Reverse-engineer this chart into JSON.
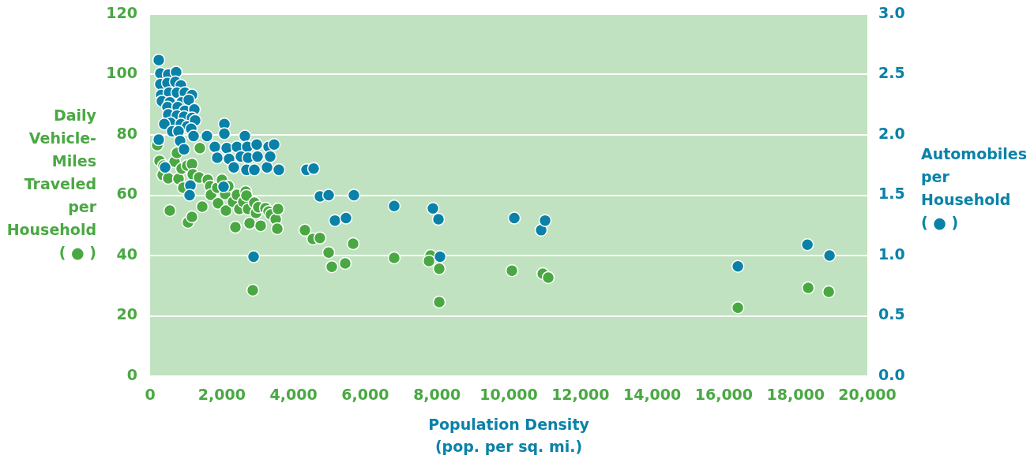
{
  "chart_data": {
    "type": "scatter",
    "xlabel": "Population Density (pop. per sq. mi.)",
    "ylabel": "Daily Vehicle-Miles Traveled per Household ( ● )",
    "y2label": "Automobiles per Household ( ● )",
    "xlim": [
      0,
      20000
    ],
    "xticks": [
      0,
      {
        "value": 2000,
        "label": "2,000"
      },
      {
        "value": 4000,
        "label": "4,000"
      },
      {
        "value": 6000,
        "label": "6,000"
      },
      {
        "value": 8000,
        "label": "8,000"
      },
      {
        "value": 10000,
        "label": "10,000"
      },
      {
        "value": 12000,
        "label": "12,000"
      },
      {
        "value": 14000,
        "label": "14,000"
      },
      {
        "value": 16000,
        "label": "16,000"
      },
      {
        "value": 18000,
        "label": "18,000"
      },
      {
        "value": 20000,
        "label": "20,000"
      }
    ],
    "ylim": [
      0,
      120
    ],
    "yticks": [
      0,
      20,
      40,
      60,
      80,
      100,
      120
    ],
    "y2lim": [
      0,
      3
    ],
    "y2ticks": [
      {
        "value": 0,
        "label": "0.0"
      },
      {
        "value": 0.5,
        "label": "0.5"
      },
      {
        "value": 1,
        "label": "1.0"
      },
      {
        "value": 1.5,
        "label": "1.5"
      },
      {
        "value": 2,
        "label": "2.0"
      },
      {
        "value": 2.5,
        "label": "2.5"
      },
      {
        "value": 3,
        "label": "3.0"
      }
    ],
    "grid": "y",
    "legend": false,
    "marker": "circle",
    "series": [
      {
        "color": "#4aa843",
        "x": [
          200,
          264,
          374,
          352,
          507,
          551,
          683,
          749,
          793,
          881,
          925,
          1035,
          1168,
          1190,
          1057,
          1168,
          1366,
          1388,
          1454,
          1608,
          1674,
          1696,
          1873,
          1895,
          2005,
          2093,
          2115,
          2181,
          2313,
          2379,
          2423,
          2489,
          2600,
          2666,
          2732,
          2776,
          2688,
          2864,
          2908,
          2952,
          3018,
          3084,
          3216,
          3305,
          3370,
          3503,
          3547,
          3569,
          4318,
          4538,
          4736,
          4979,
          5067,
          5441,
          5662,
          6807,
          7821,
          7777,
          8063,
          8063,
          10090,
          10950,
          11103,
          16390,
          18351,
          18924
        ],
        "values": [
          76.6,
          71.4,
          69.8,
          66.7,
          65.6,
          54.9,
          71.1,
          74.0,
          65.4,
          68.8,
          62.5,
          69.8,
          70.3,
          66.9,
          51.0,
          52.8,
          65.9,
          75.6,
          56.2,
          65.1,
          63.0,
          60.1,
          62.5,
          57.3,
          65.1,
          60.4,
          54.9,
          63.0,
          57.8,
          49.4,
          60.1,
          55.4,
          57.8,
          61.2,
          55.4,
          50.7,
          59.9,
          28.5,
          57.5,
          54.1,
          56.0,
          49.9,
          55.7,
          54.6,
          53.6,
          52.0,
          48.9,
          55.4,
          48.4,
          45.5,
          45.8,
          41.0,
          36.3,
          37.4,
          43.9,
          39.2,
          40.0,
          38.2,
          35.6,
          24.6,
          35.0,
          34.0,
          32.7,
          22.7,
          29.3,
          28.0
        ]
      },
      {
        "color": "#0a82a8",
        "axis": "y2",
        "x": [
          242,
          286,
          507,
          727,
          286,
          485,
          705,
          859,
          308,
          529,
          749,
          969,
          1168,
          330,
          551,
          881,
          1079,
          485,
          771,
          969,
          1234,
          507,
          749,
          947,
          1168,
          573,
          859,
          1035,
          1256,
          397,
          617,
          793,
          1146,
          1212,
          1586,
          2071,
          2071,
          2644,
          242,
          837,
          1806,
          2137,
          2423,
          2710,
          2974,
          3305,
          3459,
          947,
          1873,
          2203,
          2533,
          2732,
          2996,
          3261,
          3349,
          2688,
          2908,
          3591,
          2335,
          419,
          2049,
          1124,
          1102,
          2886,
          4362,
          4560,
          4736,
          4979,
          5155,
          5463,
          5684,
          6807,
          7887,
          8041,
          8085,
          10156,
          10905,
          11015,
          16390,
          18329,
          18946
        ],
        "values": [
          2.62,
          2.51,
          2.5,
          2.52,
          2.42,
          2.43,
          2.44,
          2.41,
          2.33,
          2.35,
          2.35,
          2.35,
          2.33,
          2.28,
          2.27,
          2.27,
          2.29,
          2.23,
          2.23,
          2.2,
          2.21,
          2.17,
          2.16,
          2.15,
          2.14,
          2.1,
          2.09,
          2.07,
          2.12,
          2.09,
          2.03,
          2.03,
          2.05,
          1.99,
          1.99,
          2.09,
          2.01,
          1.99,
          1.96,
          1.95,
          1.9,
          1.89,
          1.9,
          1.9,
          1.92,
          1.9,
          1.92,
          1.88,
          1.81,
          1.8,
          1.82,
          1.81,
          1.82,
          1.73,
          1.82,
          1.71,
          1.71,
          1.71,
          1.73,
          1.73,
          1.57,
          1.58,
          1.5,
          0.99,
          1.71,
          1.72,
          1.49,
          1.5,
          1.29,
          1.31,
          1.5,
          1.41,
          1.39,
          1.3,
          0.99,
          1.31,
          1.21,
          1.29,
          0.91,
          1.09,
          1.0
        ]
      }
    ]
  }
}
